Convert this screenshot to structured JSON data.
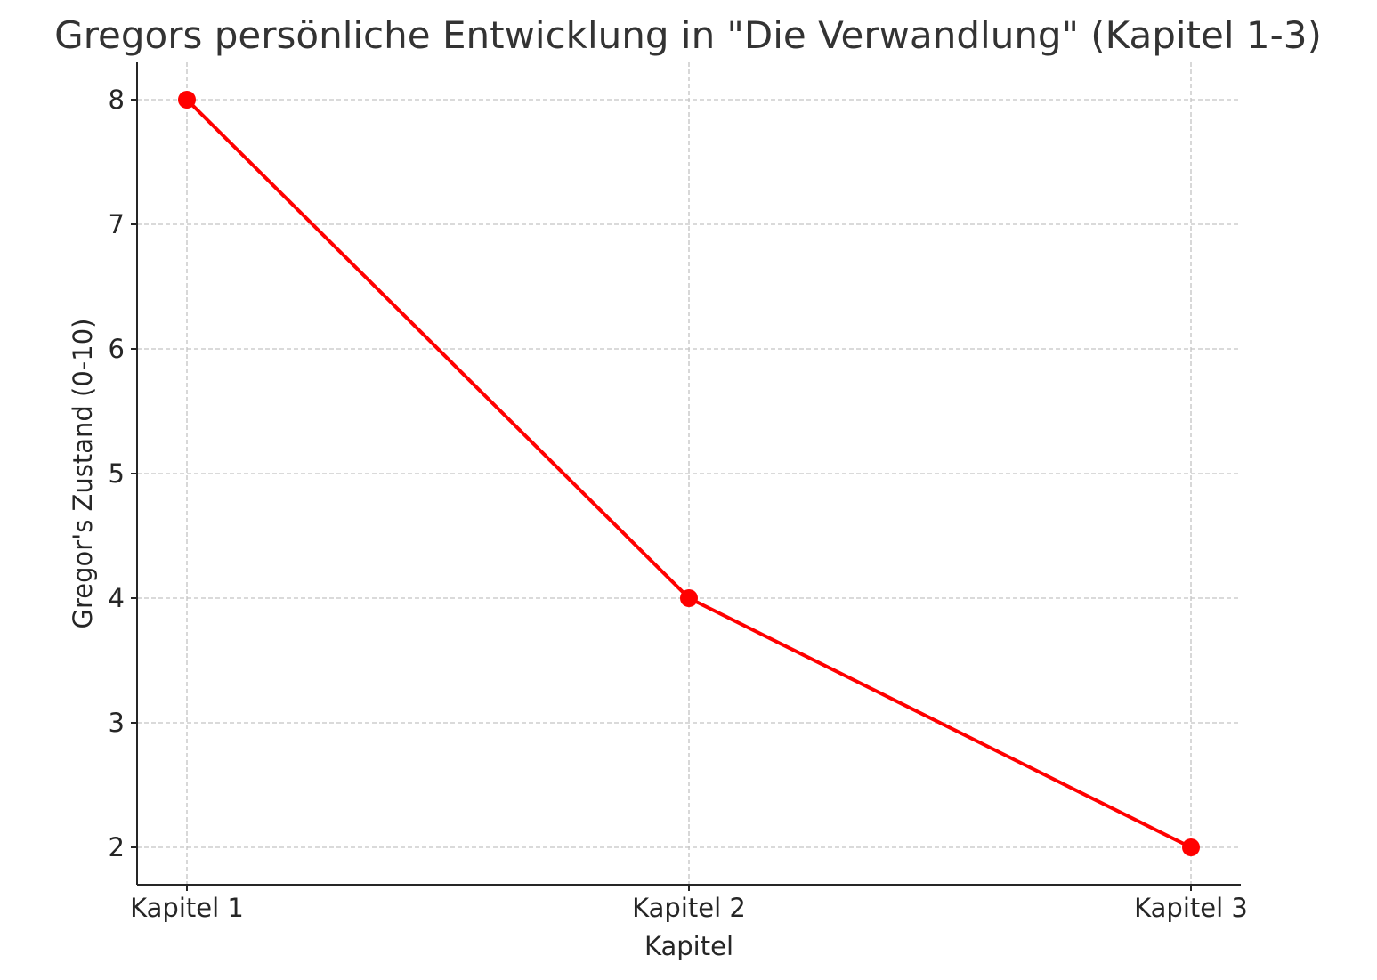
{
  "chart_data": {
    "type": "line",
    "title": "Gregors persönliche Entwicklung in \"Die Verwandlung\" (Kapitel 1-3)",
    "xlabel": "Kapitel",
    "ylabel": "Gregor's Zustand (0-10)",
    "categories": [
      "Kapitel 1",
      "Kapitel 2",
      "Kapitel 3"
    ],
    "series": [
      {
        "values": [
          8,
          4,
          2
        ]
      }
    ],
    "ylim": [
      1.7,
      8.3
    ],
    "yticks": [
      2,
      3,
      4,
      5,
      6,
      7,
      8
    ],
    "grid": true,
    "marker": "circle",
    "line_color": "#ff0000",
    "grid_color": "#c4c4c4"
  }
}
